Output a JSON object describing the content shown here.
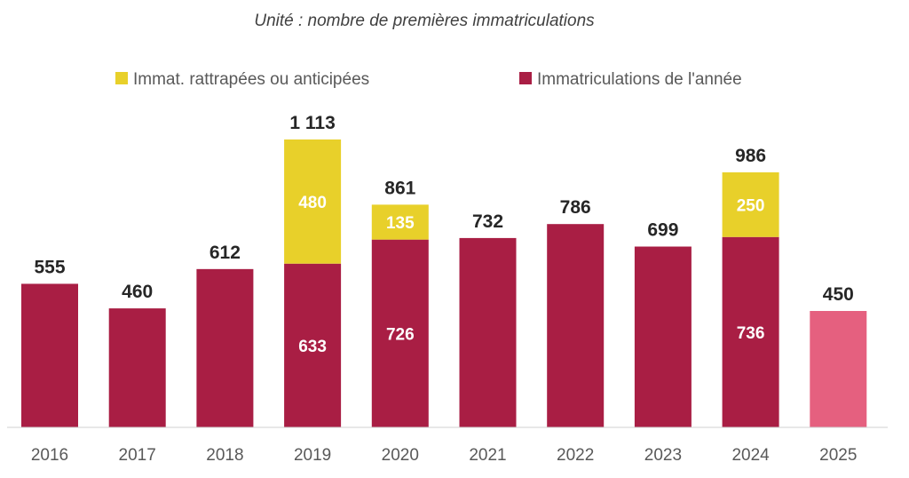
{
  "chart_data": {
    "type": "bar",
    "stacked": true,
    "subtitle": "Unité : nombre de premières immatriculations",
    "categories": [
      "2016",
      "2017",
      "2018",
      "2019",
      "2020",
      "2021",
      "2022",
      "2023",
      "2024",
      "2025"
    ],
    "series": [
      {
        "name": "Immatriculations de l'année",
        "color": "#A91E44",
        "values": [
          555,
          460,
          612,
          633,
          726,
          732,
          786,
          699,
          736,
          450
        ],
        "point_colors": [
          null,
          null,
          null,
          null,
          null,
          null,
          null,
          null,
          null,
          "#E5607F"
        ]
      },
      {
        "name": "Immat. rattrapées ou anticipées",
        "color": "#E8D02A",
        "values": [
          0,
          0,
          0,
          480,
          135,
          0,
          0,
          0,
          250,
          0
        ]
      }
    ],
    "totals": [
      555,
      460,
      612,
      1113,
      861,
      732,
      786,
      699,
      986,
      450
    ],
    "total_labels": [
      "555",
      "460",
      "612",
      "1 113",
      "861",
      "732",
      "786",
      "699",
      "986",
      "450"
    ],
    "segment_labels": {
      "base": [
        "",
        "",
        "",
        "633",
        "726",
        "",
        "",
        "",
        "736",
        ""
      ],
      "top": [
        "",
        "",
        "",
        "480",
        "135",
        "",
        "",
        "",
        "250",
        ""
      ]
    },
    "legend": {
      "position": "top",
      "order": [
        "Immat. rattrapées ou anticipées",
        "Immatriculations de l'année"
      ]
    },
    "ylim": [
      0,
      1113
    ],
    "grid": false,
    "y_axis_visible": false
  }
}
